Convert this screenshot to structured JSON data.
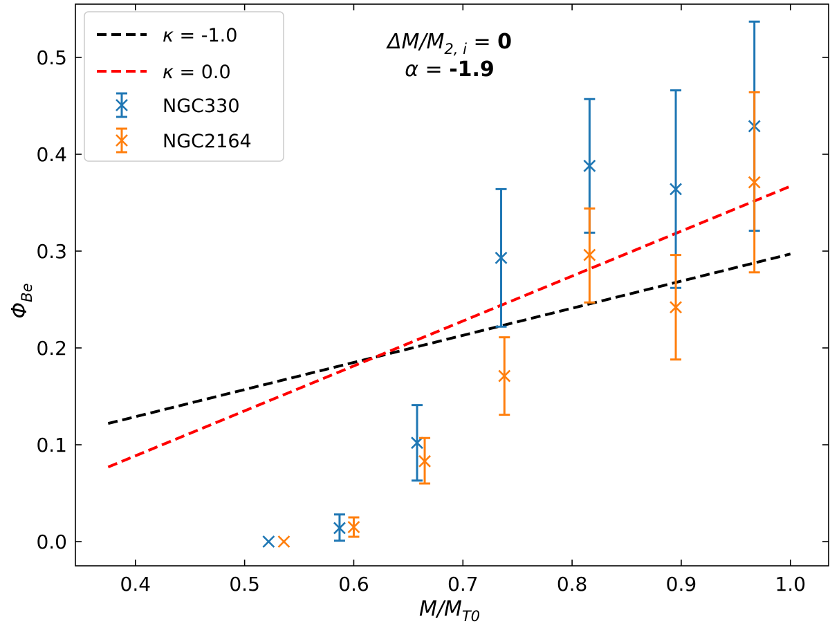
{
  "chart_data": {
    "type": "scatter",
    "xlabel": "M/M",
    "xlabel_sub": "T0",
    "ylabel": "Φ",
    "ylabel_sub": "Be",
    "xlim": [
      0.345,
      1.035
    ],
    "ylim": [
      -0.025,
      0.555
    ],
    "xticks": [
      0.4,
      0.5,
      0.6,
      0.7,
      0.8,
      0.9,
      1.0
    ],
    "xtick_labels": [
      "0.4",
      "0.5",
      "0.6",
      "0.7",
      "0.8",
      "0.9",
      "1.0"
    ],
    "yticks": [
      0.0,
      0.1,
      0.2,
      0.3,
      0.4,
      0.5
    ],
    "ytick_labels": [
      "0.0",
      "0.1",
      "0.2",
      "0.3",
      "0.4",
      "0.5"
    ],
    "lines": [
      {
        "name": "κ = -1.0",
        "symbol": "κ",
        "eq": " = ",
        "value": "-1.0",
        "color": "#000000",
        "x": [
          0.375,
          1.0
        ],
        "y": [
          0.122,
          0.297
        ]
      },
      {
        "name": "κ = 0.0",
        "symbol": "κ",
        "eq": " = ",
        "value": "0.0",
        "color": "#ff0000",
        "x": [
          0.375,
          1.0
        ],
        "y": [
          0.077,
          0.367
        ]
      }
    ],
    "series": [
      {
        "name": "NGC330",
        "color": "#1f77b4",
        "points": [
          {
            "x": 0.522,
            "y": 0.0,
            "lo": null,
            "hi": null
          },
          {
            "x": 0.587,
            "y": 0.014,
            "lo": 0.001,
            "hi": 0.028
          },
          {
            "x": 0.658,
            "y": 0.102,
            "lo": 0.063,
            "hi": 0.141
          },
          {
            "x": 0.735,
            "y": 0.293,
            "lo": 0.222,
            "hi": 0.364
          },
          {
            "x": 0.816,
            "y": 0.388,
            "lo": 0.319,
            "hi": 0.457
          },
          {
            "x": 0.895,
            "y": 0.364,
            "lo": 0.262,
            "hi": 0.466
          },
          {
            "x": 0.967,
            "y": 0.429,
            "lo": 0.321,
            "hi": 0.537
          }
        ]
      },
      {
        "name": "NGC2164",
        "color": "#ff7f0e",
        "points": [
          {
            "x": 0.536,
            "y": 0.0,
            "lo": null,
            "hi": null
          },
          {
            "x": 0.6,
            "y": 0.015,
            "lo": 0.005,
            "hi": 0.025
          },
          {
            "x": 0.665,
            "y": 0.083,
            "lo": 0.06,
            "hi": 0.107
          },
          {
            "x": 0.738,
            "y": 0.171,
            "lo": 0.131,
            "hi": 0.211
          },
          {
            "x": 0.816,
            "y": 0.296,
            "lo": 0.247,
            "hi": 0.344
          },
          {
            "x": 0.895,
            "y": 0.242,
            "lo": 0.188,
            "hi": 0.296
          },
          {
            "x": 0.967,
            "y": 0.371,
            "lo": 0.278,
            "hi": 0.464
          }
        ]
      }
    ],
    "legend_position": "top-left",
    "annotations": [
      {
        "label": "ΔM/M",
        "sub": "2, i",
        "eq": " = ",
        "value": "0"
      },
      {
        "label": "α",
        "sub": "",
        "eq": " = ",
        "value": "-1.9"
      }
    ]
  }
}
